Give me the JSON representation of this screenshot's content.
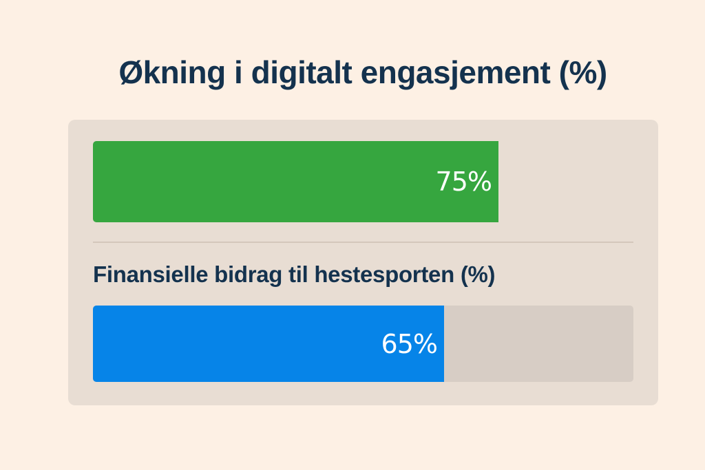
{
  "chart_data": {
    "type": "bar",
    "orientation": "horizontal",
    "title": "Økning i digitalt engasjement (%)",
    "value_range": [
      0,
      100
    ],
    "grid": false,
    "series": [
      {
        "name": "",
        "value": 75,
        "label": "75%",
        "color": "#36a63f"
      },
      {
        "name": "Finansielle bidrag til hestesporten (%)",
        "value": 65,
        "label": "65%",
        "color": "#0684e8"
      }
    ]
  }
}
